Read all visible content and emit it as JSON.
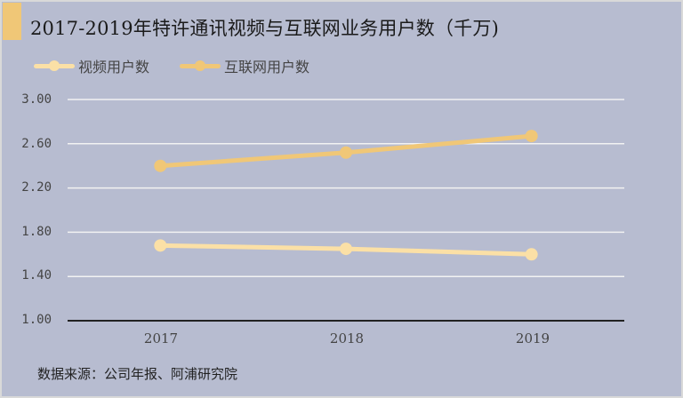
{
  "title": "2017-2019年特许通讯视频与互联网业务用户数（千万)",
  "legend": [
    {
      "label": "视频用户数",
      "color": "#fbe0a6"
    },
    {
      "label": "互联网用户数",
      "color": "#f0c777"
    }
  ],
  "yaxis": {
    "ticks": [
      "3.00",
      "2.60",
      "2.20",
      "1.80",
      "1.40",
      "1.00"
    ]
  },
  "xaxis": {
    "ticks": [
      "2017",
      "2018",
      "2019"
    ]
  },
  "source": "数据来源：公司年报、阿浦研究院",
  "colors": {
    "background": "#b7bcd0",
    "accent": "#f0c777",
    "video": "#fbe0a6",
    "internet": "#f0c777",
    "grid": "#f2f2f2",
    "axis": "#222222"
  },
  "chart_data": {
    "type": "line",
    "title": "2017-2019年特许通讯视频与互联网业务用户数（千万)",
    "categories": [
      "2017",
      "2018",
      "2019"
    ],
    "series": [
      {
        "name": "视频用户数",
        "values": [
          1.68,
          1.65,
          1.6
        ]
      },
      {
        "name": "互联网用户数",
        "values": [
          2.4,
          2.52,
          2.67
        ]
      }
    ],
    "xlabel": "",
    "ylabel": "",
    "ylim": [
      1.0,
      3.0
    ],
    "yticks": [
      1.0,
      1.4,
      1.8,
      2.2,
      2.6,
      3.0
    ],
    "grid": true,
    "legend_position": "top-left",
    "source": "数据来源：公司年报、阿浦研究院"
  }
}
